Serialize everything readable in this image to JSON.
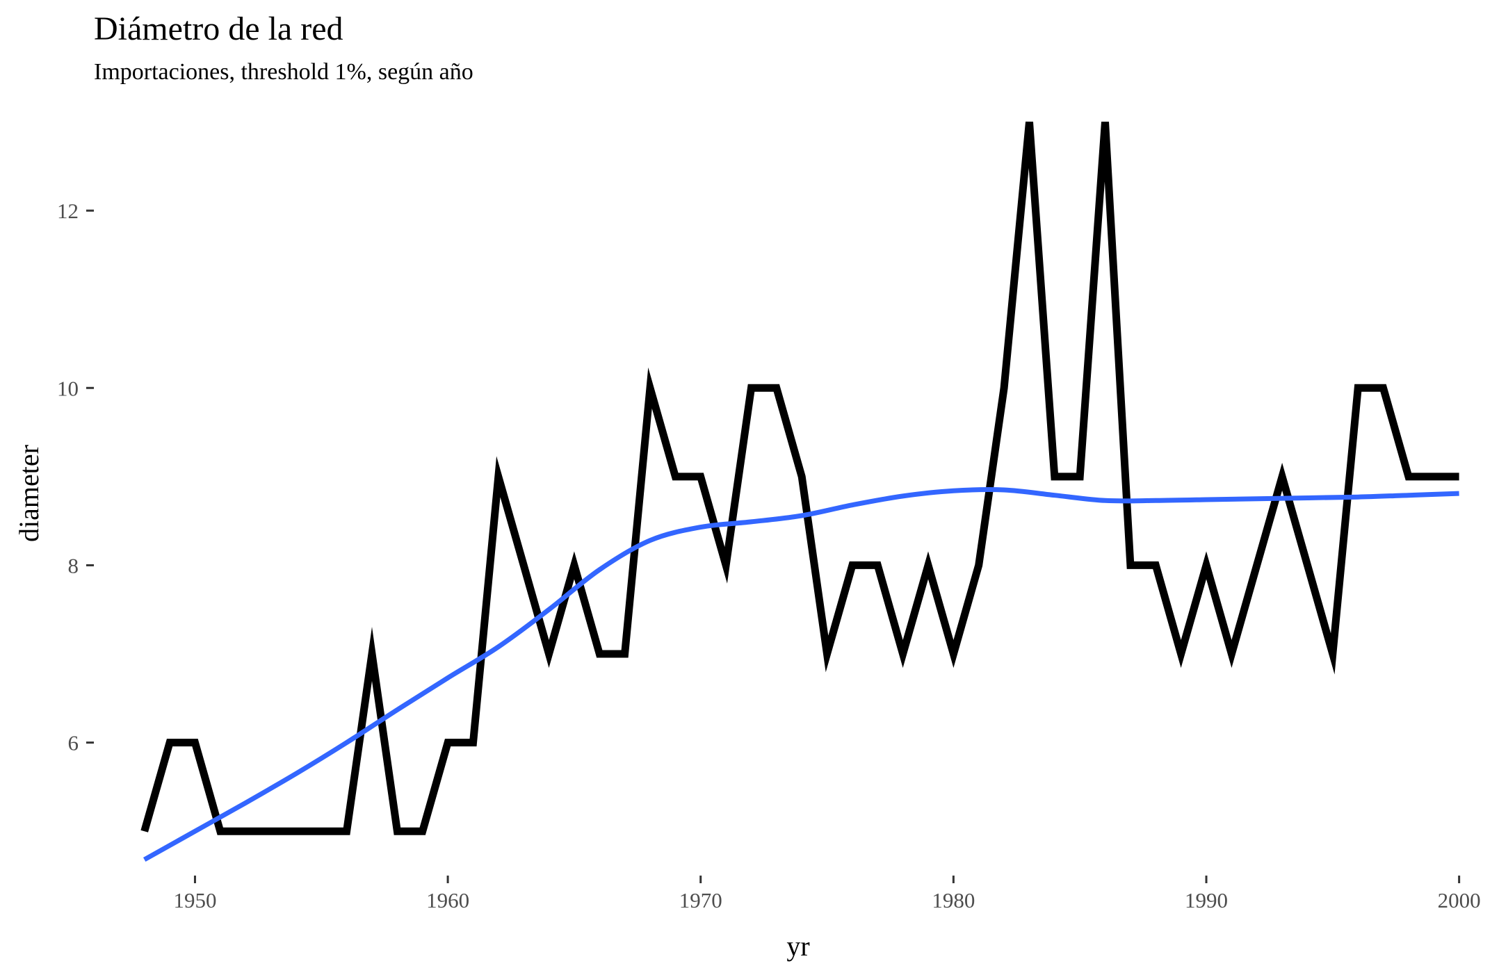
{
  "chart_data": {
    "type": "line",
    "title": "Diámetro de la red",
    "subtitle": "Importaciones, threshold 1%, según año",
    "xlabel": "yr",
    "ylabel": "diameter",
    "xlim": [
      1946,
      2001
    ],
    "ylim": [
      4.5,
      13.2
    ],
    "xticks": [
      1950,
      1960,
      1970,
      1980,
      1990,
      2000
    ],
    "yticks": [
      6,
      8,
      10,
      12
    ],
    "grid": false,
    "legend": "none",
    "series": [
      {
        "color": "#000000",
        "x": [
          1948,
          1949,
          1950,
          1951,
          1952,
          1953,
          1954,
          1955,
          1956,
          1957,
          1958,
          1959,
          1960,
          1961,
          1962,
          1963,
          1964,
          1965,
          1966,
          1967,
          1968,
          1969,
          1970,
          1971,
          1972,
          1973,
          1974,
          1975,
          1976,
          1977,
          1978,
          1979,
          1980,
          1981,
          1982,
          1983,
          1984,
          1985,
          1986,
          1987,
          1988,
          1989,
          1990,
          1991,
          1992,
          1993,
          1994,
          1995,
          1996,
          1997,
          1998,
          1999,
          2000
        ],
        "y": [
          5,
          6,
          6,
          5,
          5,
          5,
          5,
          5,
          5,
          7,
          5,
          5,
          6,
          6,
          9,
          8,
          7,
          8,
          7,
          7,
          10,
          9,
          9,
          8,
          10,
          10,
          9,
          7,
          8,
          8,
          7,
          8,
          7,
          8,
          10,
          13,
          9,
          9,
          13,
          8,
          8,
          7,
          8,
          7,
          8,
          9,
          8,
          7,
          10,
          10,
          9,
          9,
          9
        ]
      },
      {
        "color": "#3366ff",
        "x": [
          1948,
          1950,
          1952,
          1954,
          1956,
          1958,
          1960,
          1962,
          1964,
          1966,
          1968,
          1970,
          1972,
          1974,
          1976,
          1978,
          1980,
          1982,
          1984,
          1986,
          1988,
          1990,
          1992,
          1994,
          1996,
          1998,
          2000
        ],
        "y": [
          4.68,
          5.0,
          5.32,
          5.65,
          6.0,
          6.37,
          6.73,
          7.08,
          7.5,
          7.95,
          8.28,
          8.43,
          8.49,
          8.56,
          8.68,
          8.78,
          8.84,
          8.85,
          8.79,
          8.73,
          8.73,
          8.74,
          8.75,
          8.76,
          8.77,
          8.79,
          8.81
        ]
      }
    ]
  }
}
